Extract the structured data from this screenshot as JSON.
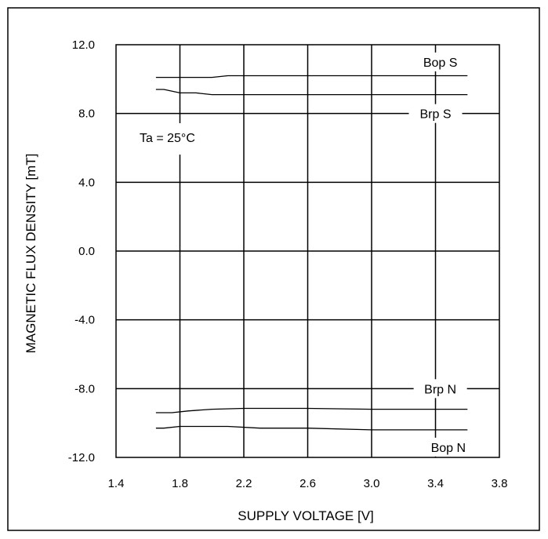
{
  "chart_data": {
    "type": "line",
    "xlabel": "SUPPLY VOLTAGE [V]",
    "ylabel": "MAGNETIC FLUX DENSITY [mT]",
    "xlim": [
      1.4,
      3.8
    ],
    "ylim": [
      -12.0,
      12.0
    ],
    "x_ticks": [
      "1.4",
      "1.8",
      "2.2",
      "2.6",
      "3.0",
      "3.4",
      "3.8"
    ],
    "y_ticks": [
      "12.0",
      "8.0",
      "4.0",
      "0.0",
      "-4.0",
      "-8.0",
      "-12.0"
    ],
    "grid": true,
    "annotation": "Ta = 25°C",
    "series": [
      {
        "name": "Bop S",
        "x": [
          1.65,
          1.8,
          2.0,
          2.1,
          2.4,
          2.8,
          3.2,
          3.6
        ],
        "y": [
          10.1,
          10.1,
          10.1,
          10.2,
          10.2,
          10.2,
          10.2,
          10.2
        ]
      },
      {
        "name": "Brp S",
        "x": [
          1.65,
          1.7,
          1.8,
          1.9,
          2.0,
          2.4,
          2.8,
          3.2,
          3.6
        ],
        "y": [
          9.4,
          9.4,
          9.2,
          9.2,
          9.1,
          9.1,
          9.1,
          9.1,
          9.1
        ]
      },
      {
        "name": "Brp N",
        "x": [
          1.65,
          1.75,
          1.85,
          2.0,
          2.2,
          2.6,
          3.0,
          3.6
        ],
        "y": [
          -9.4,
          -9.4,
          -9.3,
          -9.2,
          -9.15,
          -9.15,
          -9.2,
          -9.2
        ]
      },
      {
        "name": "Bop N",
        "x": [
          1.65,
          1.7,
          1.8,
          2.1,
          2.3,
          2.6,
          3.0,
          3.6
        ],
        "y": [
          -10.3,
          -10.3,
          -10.2,
          -10.2,
          -10.3,
          -10.3,
          -10.4,
          -10.4
        ]
      }
    ]
  }
}
